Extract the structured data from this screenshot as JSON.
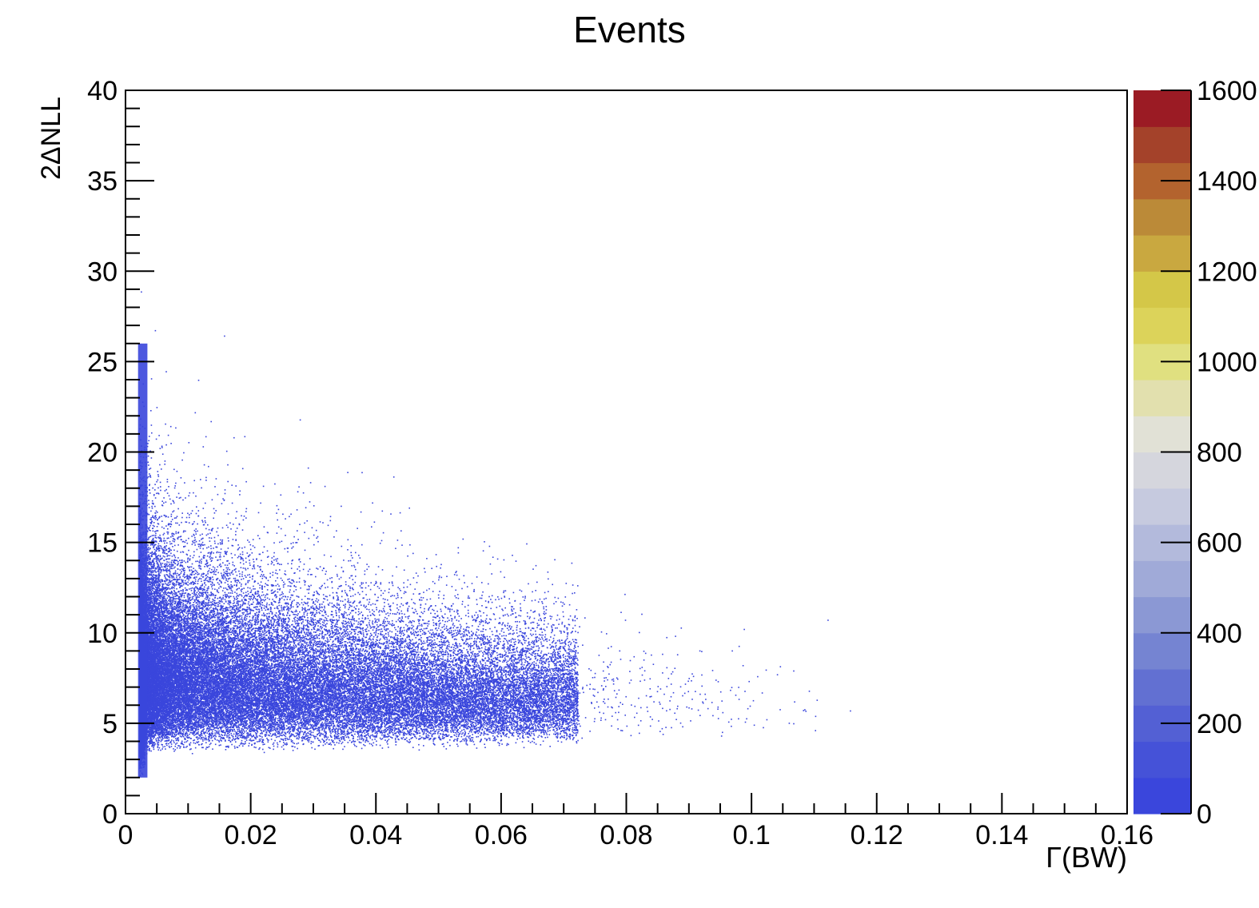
{
  "chart_data": {
    "type": "heatmap",
    "title": "Events",
    "xlabel": "Γ(BW)",
    "ylabel": "2ΔNLL",
    "xlim": [
      0,
      0.16
    ],
    "ylim": [
      0,
      40
    ],
    "x_ticks": [
      "0",
      "0.02",
      "0.04",
      "0.06",
      "0.08",
      "0.1",
      "0.12",
      "0.14",
      "0.16"
    ],
    "y_ticks": [
      "0",
      "5",
      "10",
      "15",
      "20",
      "25",
      "30",
      "35",
      "40"
    ],
    "colorbar": {
      "range": [
        0,
        1600
      ],
      "ticks": [
        "0",
        "200",
        "400",
        "600",
        "800",
        "1000",
        "1200",
        "1400",
        "1600"
      ],
      "colors": [
        "#3a46dc",
        "#4552d8",
        "#5360d4",
        "#6270d2",
        "#7584d2",
        "#8b98d4",
        "#a0aad8",
        "#b3badc",
        "#c6cadf",
        "#d5d6dd",
        "#e1e1d6",
        "#e2e0ae",
        "#e0e080",
        "#dcd35a",
        "#d4c748",
        "#c9a840",
        "#bb8a38",
        "#b3632e",
        "#a4422a",
        "#9b1b24"
      ]
    },
    "marker_color": "#3a46dc",
    "distribution": "dense cluster near Γ ≈ 0.002–0.02 with 2ΔNLL ≈ 3–20, sparse tail extending to Γ ≈ 0.12"
  }
}
